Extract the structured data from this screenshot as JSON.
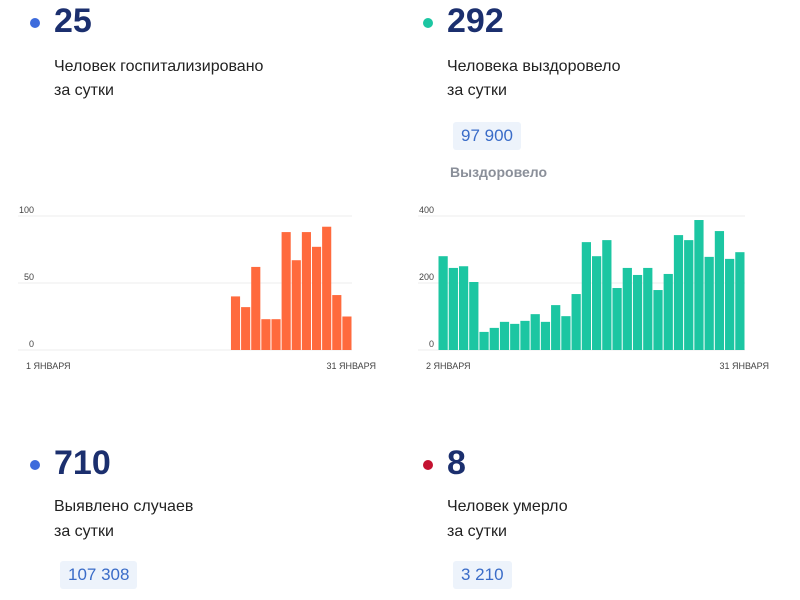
{
  "cards": [
    {
      "value": 25,
      "dot_color": "#3d6bdc",
      "label": [
        "Человек госпитализировано",
        "за сутки"
      ],
      "chart": {
        "type": "bar",
        "color": "#ff6a3d",
        "categories": [
          "1 ЯНВАРЯ",
          null,
          null,
          null,
          null,
          null,
          null,
          null,
          null,
          null,
          null,
          null,
          null,
          null,
          null,
          null,
          null,
          null,
          null,
          null,
          null,
          null,
          null,
          null,
          null,
          null,
          null,
          null,
          null,
          null,
          "31 ЯНВАРЯ"
        ],
        "values": [
          null,
          null,
          null,
          null,
          null,
          null,
          null,
          null,
          null,
          null,
          null,
          null,
          null,
          null,
          null,
          null,
          null,
          null,
          null,
          40,
          32,
          62,
          23,
          23,
          88,
          67,
          88,
          77,
          92,
          41,
          25
        ],
        "ylim": [
          0,
          100
        ],
        "yticks": [
          0,
          50,
          100
        ],
        "grid": true
      }
    },
    {
      "value": 292,
      "dot_color": "#1cc6a2",
      "label": [
        "Человека выздоровело",
        "за сутки"
      ],
      "total": "97 900",
      "total_caption": "Выздоровело",
      "chart": {
        "type": "bar",
        "color": "#1cc6a2",
        "categories": [
          "2 ЯНВАРЯ",
          null,
          null,
          null,
          null,
          null,
          null,
          null,
          null,
          null,
          null,
          null,
          null,
          null,
          null,
          null,
          null,
          null,
          null,
          null,
          null,
          null,
          null,
          null,
          null,
          null,
          null,
          null,
          null,
          "31 ЯНВАРЯ"
        ],
        "values": [
          280,
          245,
          250,
          203,
          54,
          66,
          84,
          78,
          87,
          107,
          84,
          134,
          101,
          167,
          322,
          280,
          328,
          185,
          245,
          224,
          245,
          179,
          227,
          343,
          328,
          388,
          278,
          355,
          272,
          292
        ],
        "ylim": [
          0,
          400
        ],
        "yticks": [
          0,
          200,
          400
        ],
        "grid": true
      }
    },
    {
      "value": 710,
      "dot_color": "#3d6bdc",
      "label": [
        "Выявлено случаев",
        "за сутки"
      ],
      "total": "107 308"
    },
    {
      "value": 8,
      "dot_color": "#c41230",
      "label": [
        "Человек умерло",
        "за сутки"
      ],
      "total": "3 210"
    }
  ]
}
